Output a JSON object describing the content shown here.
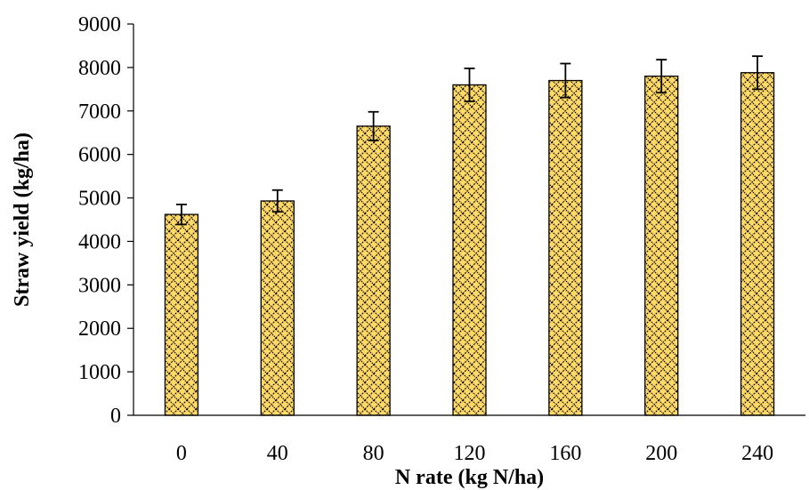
{
  "chart_data": {
    "type": "bar",
    "title": "",
    "xlabel": "N rate (kg N/ha)",
    "ylabel": "Straw yield (kg/ha)",
    "categories": [
      "0",
      "40",
      "80",
      "120",
      "160",
      "200",
      "240"
    ],
    "values": [
      4620,
      4930,
      6650,
      7600,
      7700,
      7800,
      7880
    ],
    "error": [
      230,
      250,
      330,
      380,
      390,
      380,
      380
    ],
    "ylim": [
      0,
      9000
    ],
    "yticks": [
      0,
      1000,
      2000,
      3000,
      4000,
      5000,
      6000,
      7000,
      8000,
      9000
    ],
    "grid": false,
    "legend": "none",
    "colors": {
      "bar_fill": "#FFD966",
      "bar_pattern": "#000000",
      "bar_edge": "#000000",
      "error_bar": "#000000",
      "axis": "#000000"
    }
  }
}
